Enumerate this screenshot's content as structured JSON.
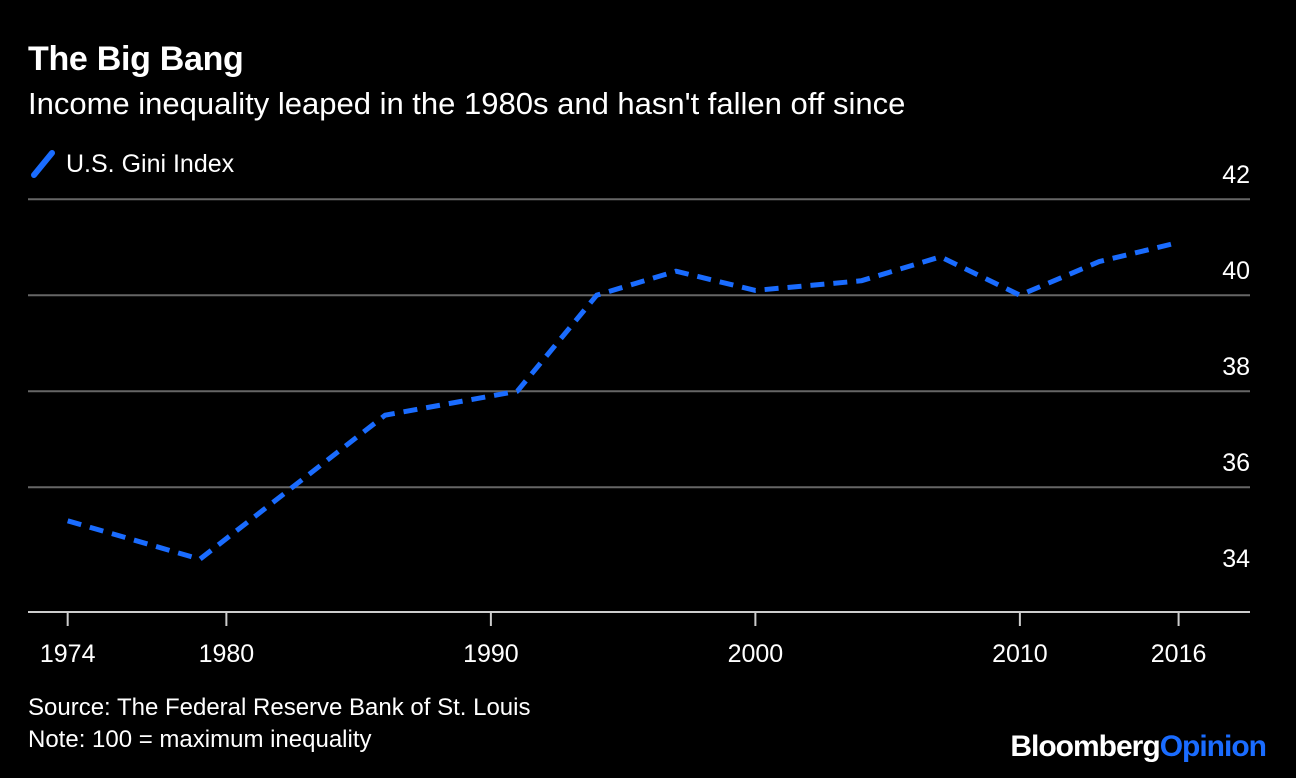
{
  "header": {
    "title": "The Big Bang",
    "subtitle": "Income inequality leaped in the 1980s and hasn't fallen off since"
  },
  "footer": {
    "source": "Source: The Federal Reserve Bank of St. Louis",
    "note": "Note: 100 = maximum inequality"
  },
  "brand": {
    "name": "Bloomberg",
    "section": "Opinion"
  },
  "colors": {
    "background": "#000000",
    "series": "#1a6cff",
    "grid": "#666666",
    "text": "#ffffff"
  },
  "chart_data": {
    "type": "line",
    "title": "The Big Bang",
    "subtitle": "Income inequality leaped in the 1980s and hasn't fallen off since",
    "legend": {
      "position": "top-left",
      "entries": [
        "U.S. Gini Index"
      ]
    },
    "x_ticks": [
      1974,
      1980,
      1990,
      2000,
      2010,
      2016
    ],
    "y_ticks": [
      34,
      36,
      38,
      40,
      42
    ],
    "xlim": [
      1972.5,
      2018.7
    ],
    "ylim": [
      33.4,
      42.4
    ],
    "y_axis_side": "right",
    "grid": true,
    "series": [
      {
        "name": "U.S. Gini Index",
        "style": "dashed",
        "x": [
          1974,
          1979,
          1986,
          1991,
          1994,
          1997,
          2000,
          2004,
          2007,
          2010,
          2013,
          2016
        ],
        "y": [
          35.3,
          34.5,
          37.5,
          38.0,
          40.0,
          40.5,
          40.1,
          40.3,
          40.8,
          40.0,
          40.7,
          41.1
        ]
      }
    ]
  }
}
